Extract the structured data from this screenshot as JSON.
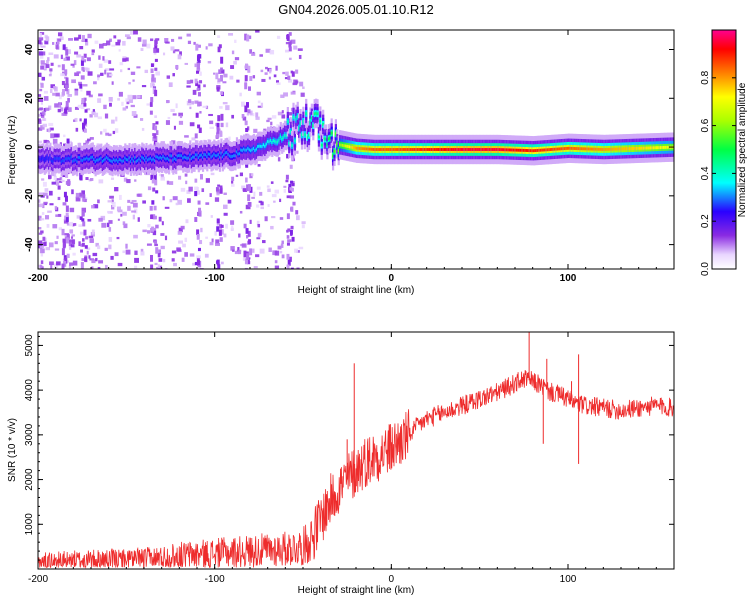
{
  "title": "GN04.2026.005.01.10.R12",
  "chart_data": [
    {
      "type": "heatmap",
      "name": "spectrogram",
      "xlabel": "Height of straight line (km)",
      "ylabel": "Frequency (Hz)",
      "xlim": [
        -200,
        160
      ],
      "ylim": [
        -50,
        48
      ],
      "xticks": [
        -200,
        -100,
        0,
        100
      ],
      "xtick_labels": [
        "-200",
        "-100",
        "0",
        "100"
      ],
      "yticks": [
        -40,
        -20,
        0,
        20,
        40
      ],
      "ytick_labels": [
        "-40",
        "-20",
        "0",
        "20",
        "40"
      ],
      "colorbar": {
        "label": "Normalized spectral amplitude",
        "range": [
          0,
          1
        ],
        "ticks": [
          0.0,
          0.2,
          0.4,
          0.6,
          0.8
        ],
        "tick_labels": [
          "0.0",
          "0.2",
          "0.4",
          "0.6",
          "0.8"
        ]
      },
      "ridge": {
        "x": [
          -200,
          -170,
          -140,
          -110,
          -90,
          -75,
          -65,
          -55,
          -45,
          -38,
          -30,
          -20,
          -10,
          0,
          20,
          40,
          60,
          80,
          100,
          120,
          140,
          160
        ],
        "freq": [
          -5,
          -5,
          -5,
          -4,
          -3,
          0,
          3,
          6,
          8,
          4,
          1,
          -0.5,
          -1,
          -1,
          -1,
          -1,
          -1,
          -1.5,
          -0.5,
          -1,
          -0.5,
          0
        ],
        "amplitude": [
          0.25,
          0.3,
          0.3,
          0.3,
          0.3,
          0.35,
          0.4,
          0.4,
          0.45,
          0.45,
          0.6,
          0.8,
          0.85,
          0.85,
          0.9,
          0.95,
          0.95,
          0.9,
          0.85,
          0.8,
          0.75,
          0.7
        ]
      }
    },
    {
      "type": "line",
      "name": "snr",
      "xlabel": "Height of straight line (km)",
      "ylabel": "SNR (10 * v/v)",
      "xlim": [
        -200,
        160
      ],
      "ylim": [
        0,
        5300
      ],
      "xticks": [
        -200,
        -100,
        0,
        100
      ],
      "xtick_labels": [
        "-200",
        "-100",
        "0",
        "100"
      ],
      "yticks": [
        1000,
        2000,
        3000,
        4000,
        5000
      ],
      "ytick_labels": [
        "1000",
        "2000",
        "3000",
        "4000",
        "5000"
      ],
      "color": "#ee2c2c",
      "series": {
        "x": [
          -200,
          -180,
          -160,
          -140,
          -130,
          -120,
          -100,
          -80,
          -60,
          -50,
          -45,
          -40,
          -35,
          -30,
          -25,
          -20,
          -15,
          -10,
          -5,
          0,
          5,
          10,
          15,
          20,
          30,
          40,
          50,
          60,
          65,
          70,
          75,
          80,
          85,
          90,
          95,
          100,
          105,
          110,
          120,
          130,
          140,
          150,
          160
        ],
        "y": [
          150,
          180,
          200,
          220,
          250,
          300,
          350,
          400,
          450,
          500,
          700,
          1100,
          1500,
          1800,
          2000,
          2200,
          2400,
          2500,
          2600,
          2700,
          2850,
          3000,
          3200,
          3350,
          3500,
          3650,
          3800,
          3950,
          4050,
          4150,
          4250,
          4200,
          4100,
          3950,
          3900,
          3800,
          3700,
          3650,
          3600,
          3550,
          3600,
          3650,
          3600
        ],
        "spikes": [
          {
            "x": -21,
            "y": 4600
          },
          {
            "x": -25,
            "y": 2900
          },
          {
            "x": 78,
            "y": 5300
          },
          {
            "x": 88,
            "y": 4700
          },
          {
            "x": 102,
            "y": 4200
          },
          {
            "x": 106,
            "y": 4800
          },
          {
            "x": 106,
            "y": 2350
          },
          {
            "x": 86,
            "y": 2800
          }
        ]
      }
    }
  ]
}
